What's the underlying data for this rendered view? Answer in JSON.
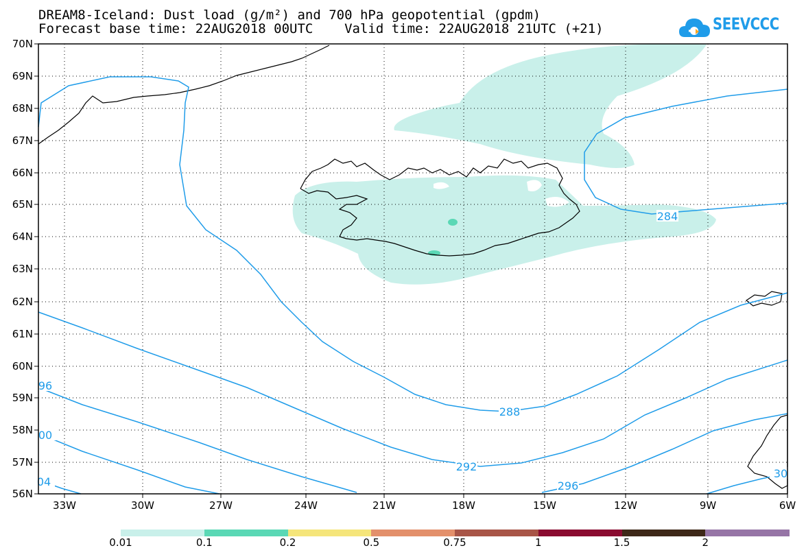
{
  "title": {
    "line1": "DREAM8-Iceland: Dust load (g/m²) and 700 hPa geopotential (gpdm)",
    "line2": "Forecast base time: 22AUG2018 00UTC    Valid time: 22AUG2018 21UTC (+21)"
  },
  "logo": {
    "text": "SEEVCCC",
    "color": "#1f9ce9"
  },
  "map": {
    "lon_labels": [
      "33W",
      "30W",
      "27W",
      "24W",
      "21W",
      "18W",
      "15W",
      "12W",
      "9W",
      "6W"
    ],
    "lat_labels": [
      "70N",
      "69N",
      "68N",
      "67N",
      "66N",
      "65N",
      "64N",
      "63N",
      "62N",
      "61N",
      "60N",
      "59N",
      "58N",
      "57N",
      "56N"
    ],
    "contour_labels": [
      "284",
      "288",
      "292",
      "296",
      "96",
      "00",
      "04",
      "30"
    ],
    "contour_color": "#1f9ce9",
    "dust_colors": {
      "very_light": "#c9f0ea",
      "light": "#5ad8b5"
    }
  },
  "colorbar": {
    "labels": [
      "0.01",
      "0.1",
      "0.2",
      "0.5",
      "0.75",
      "1",
      "1.5",
      "2"
    ],
    "colors": [
      "#c9f0ea",
      "#5ad8b5",
      "#f5e57a",
      "#e3906b",
      "#a85547",
      "#8a0b30",
      "#3e2818",
      "#9675a6"
    ]
  }
}
